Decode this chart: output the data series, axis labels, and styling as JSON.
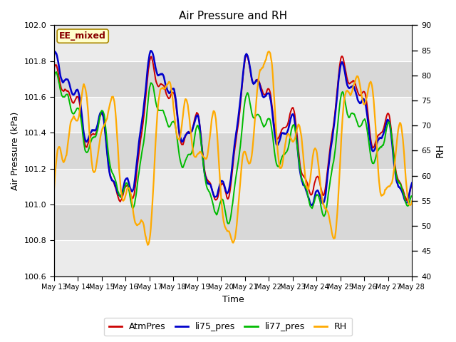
{
  "title": "Air Pressure and RH",
  "ylabel_left": "Air Pressure (kPa)",
  "ylabel_right": "RH",
  "xlabel": "Time",
  "ylim_left": [
    100.6,
    102.0
  ],
  "ylim_right": [
    40,
    90
  ],
  "yticks_left": [
    100.6,
    100.8,
    101.0,
    101.2,
    101.4,
    101.6,
    101.8,
    102.0
  ],
  "yticks_right": [
    40,
    45,
    50,
    55,
    60,
    65,
    70,
    75,
    80,
    85,
    90
  ],
  "colors": {
    "AtmPres": "#cc0000",
    "li75_pres": "#0000cc",
    "li77_pres": "#00bb00",
    "RH": "#ffaa00"
  },
  "linewidths": {
    "AtmPres": 1.4,
    "li75_pres": 1.8,
    "li77_pres": 1.4,
    "RH": 1.6
  },
  "annotation_text": "EE_mixed",
  "annotation_color": "#880000",
  "annotation_facecolor": "#ffffcc",
  "annotation_edgecolor": "#aa8800",
  "grid_color": "#ffffff",
  "band_color_dark": "#d8d8d8",
  "band_color_light": "#ebebeb",
  "fig_bg": "#ffffff",
  "xtick_labels": [
    "May 13",
    "May 14",
    "May 15",
    "May 16",
    "May 17",
    "May 18",
    "May 19",
    "May 20",
    "May 21",
    "May 22",
    "May 23",
    "May 24",
    "May 25",
    "May 26",
    "May 27",
    "May 28"
  ],
  "n_points": 600
}
